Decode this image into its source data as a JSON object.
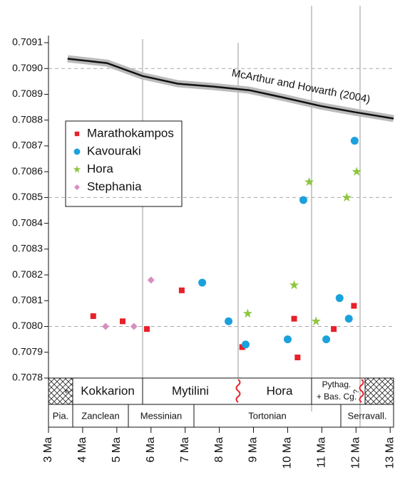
{
  "chart_data": {
    "type": "scatter",
    "xlim": [
      3,
      13.1
    ],
    "ylim": [
      0.7078,
      0.7091
    ],
    "xticks": [
      {
        "value": 3,
        "label": "3 Ma"
      },
      {
        "value": 4,
        "label": "4 Ma"
      },
      {
        "value": 5,
        "label": "5 Ma"
      },
      {
        "value": 6,
        "label": "6 Ma"
      },
      {
        "value": 7,
        "label": "7 Ma"
      },
      {
        "value": 8,
        "label": "8 Ma"
      },
      {
        "value": 9,
        "label": "9 Ma"
      },
      {
        "value": 10,
        "label": "10 Ma"
      },
      {
        "value": 11,
        "label": "11 Ma"
      },
      {
        "value": 12,
        "label": "12 Ma"
      },
      {
        "value": 13,
        "label": "13 Ma"
      }
    ],
    "yticks": [
      0.7078,
      0.7079,
      {
        "value": 0.708,
        "label": "0.7080"
      },
      0.7081,
      0.7082,
      0.7083,
      0.7084,
      0.7085,
      0.7086,
      0.7087,
      0.7088,
      0.7089,
      {
        "value": 0.709,
        "label": "0.7090"
      },
      0.7091
    ],
    "grid_lines": [
      0.708,
      0.7085,
      0.709
    ],
    "series": [
      {
        "name": "Marathokampos",
        "color": "#e8202a",
        "marker": "square",
        "x": [
          4.31,
          5.17,
          5.88,
          6.9,
          8.67,
          10.29,
          10.19,
          11.35,
          11.94
        ],
        "values": [
          0.70804,
          0.70802,
          0.70799,
          0.70814,
          0.70792,
          0.70788,
          0.70803,
          0.70799,
          0.70808
        ]
      },
      {
        "name": "Kavouraki",
        "color": "#1ba1dc",
        "marker": "circle",
        "x": [
          7.5,
          8.27,
          8.77,
          10.0,
          10.46,
          11.13,
          11.52,
          11.79,
          11.96
        ],
        "values": [
          0.70817,
          0.70802,
          0.70793,
          0.70795,
          0.70849,
          0.70795,
          0.70811,
          0.70803,
          0.70872
        ]
      },
      {
        "name": "Hora",
        "color": "#8dc63f",
        "marker": "star",
        "x": [
          8.83,
          10.19,
          10.63,
          10.83,
          11.73,
          12.02
        ],
        "values": [
          0.70805,
          0.70816,
          0.70856,
          0.70802,
          0.7085,
          0.7086
        ]
      },
      {
        "name": "Stephania",
        "color": "#d68fc0",
        "marker": "diamond",
        "x": [
          4.67,
          5.5,
          6.0
        ],
        "values": [
          0.708,
          0.708,
          0.70818
        ]
      }
    ],
    "curve": {
      "name": "McArthur and Howarth (2004)",
      "color": "#111111",
      "band_color": "#bbbbbb",
      "x": [
        3.56,
        4.71,
        5.75,
        6.79,
        7.83,
        8.88,
        9.92,
        10.96,
        12.0,
        13.1
      ],
      "values": [
        0.709038,
        0.709021,
        0.708971,
        0.708941,
        0.70893,
        0.708916,
        0.708886,
        0.708855,
        0.70883,
        0.708806
      ]
    },
    "timescale": {
      "formations": [
        "Kokkarion",
        "Mytilini",
        "Hora",
        "Pythag.",
        "+ Bas. Cg."
      ],
      "question_marks": [
        "?",
        "?"
      ],
      "stages": [
        "Pia.",
        "Zanclean",
        "Messinian",
        "Tortonian",
        "Serravall."
      ]
    }
  }
}
